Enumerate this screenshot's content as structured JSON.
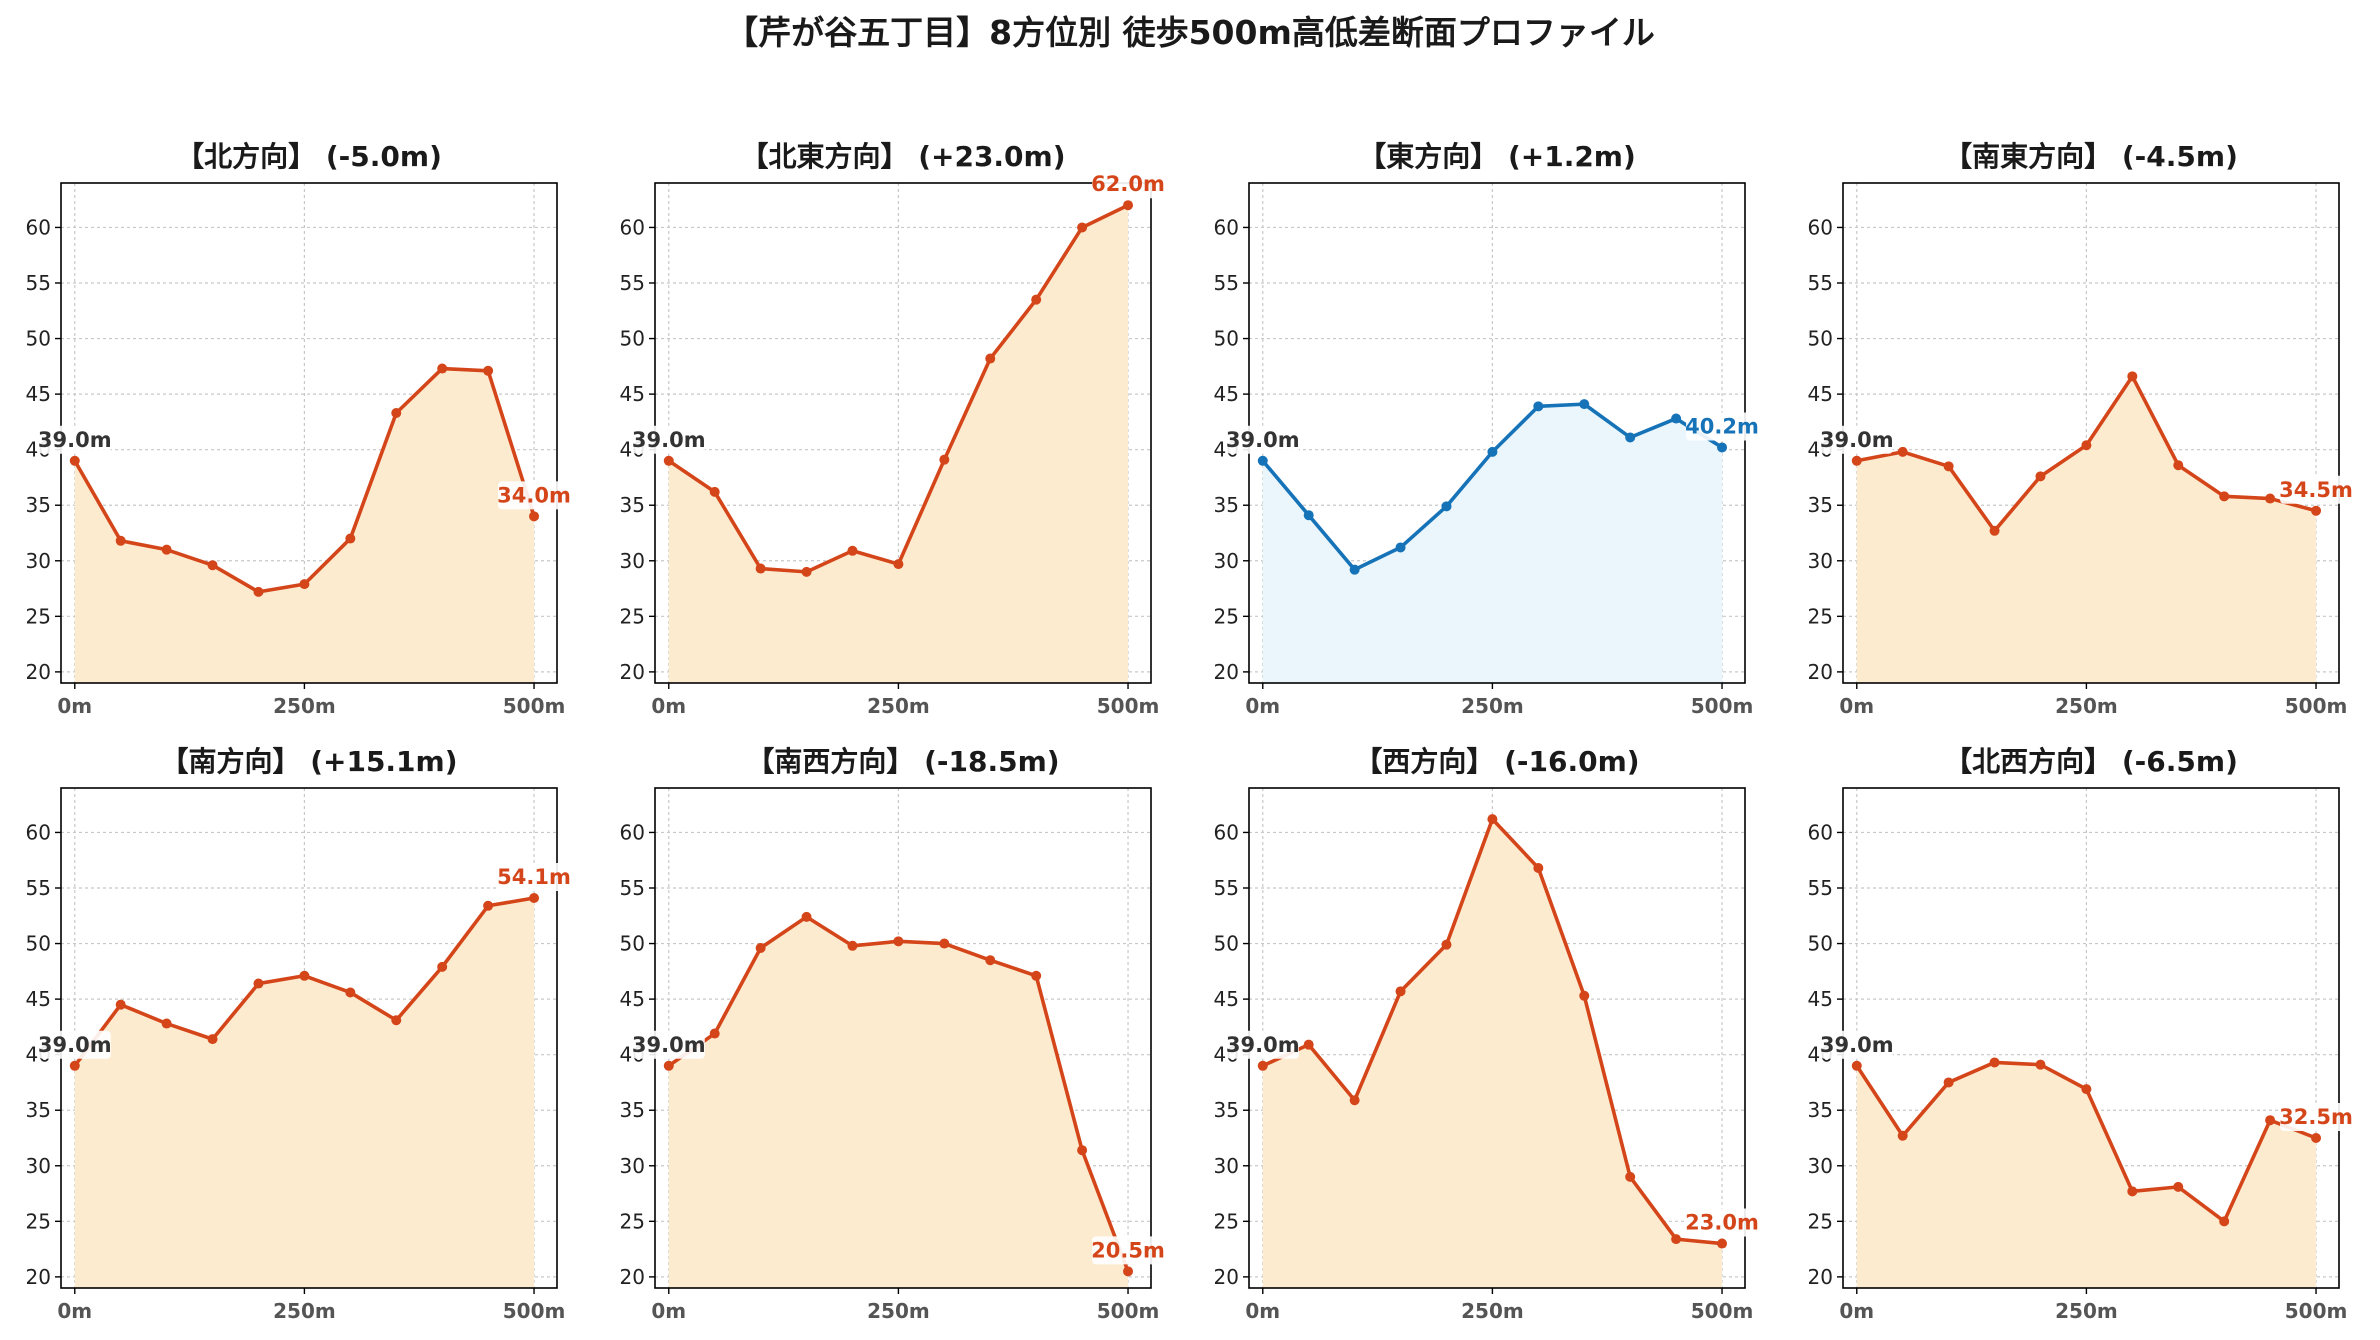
{
  "title": "【芹が谷五丁目】8方位別 徒歩500m高低差断面プロファイル",
  "colors": {
    "up_line": "#D4461A",
    "up_fill": "#FDEBD0",
    "flat_line": "#1673B8",
    "flat_fill": "#EAF6FB",
    "start_label": "#333333"
  },
  "chart_data": [
    {
      "type": "area",
      "title": "【北方向】 (-5.0m)",
      "x": [
        0,
        50,
        100,
        150,
        200,
        250,
        300,
        350,
        400,
        450,
        500
      ],
      "values": [
        39.0,
        31.8,
        31.0,
        29.6,
        27.2,
        27.9,
        32.0,
        43.3,
        47.3,
        47.1,
        34.0
      ],
      "xticks": [
        "0m",
        "250m",
        "500m"
      ],
      "yticks": [
        "20",
        "25",
        "30",
        "35",
        "40",
        "45",
        "50",
        "55",
        "60"
      ],
      "ylim": [
        19,
        64
      ],
      "start_label": "39.0m",
      "end_label": "34.0m",
      "style": "orange",
      "grid": true
    },
    {
      "type": "area",
      "title": "【北東方向】 (+23.0m)",
      "x": [
        0,
        50,
        100,
        150,
        200,
        250,
        300,
        350,
        400,
        450,
        500
      ],
      "values": [
        39.0,
        36.2,
        29.3,
        29.0,
        30.9,
        29.7,
        39.1,
        48.2,
        53.5,
        60.0,
        62.0
      ],
      "xticks": [
        "0m",
        "250m",
        "500m"
      ],
      "yticks": [
        "20",
        "25",
        "30",
        "35",
        "40",
        "45",
        "50",
        "55",
        "60"
      ],
      "ylim": [
        19,
        64
      ],
      "start_label": "39.0m",
      "end_label": "62.0m",
      "style": "orange",
      "grid": true
    },
    {
      "type": "area",
      "title": "【東方向】 (+1.2m)",
      "x": [
        0,
        50,
        100,
        150,
        200,
        250,
        300,
        350,
        400,
        450,
        500
      ],
      "values": [
        39.0,
        34.1,
        29.2,
        31.2,
        34.9,
        39.8,
        43.9,
        44.1,
        41.1,
        42.8,
        40.2
      ],
      "xticks": [
        "0m",
        "250m",
        "500m"
      ],
      "yticks": [
        "20",
        "25",
        "30",
        "35",
        "40",
        "45",
        "50",
        "55",
        "60"
      ],
      "ylim": [
        19,
        64
      ],
      "start_label": "39.0m",
      "end_label": "40.2m",
      "style": "blue",
      "grid": true
    },
    {
      "type": "area",
      "title": "【南東方向】 (-4.5m)",
      "x": [
        0,
        50,
        100,
        150,
        200,
        250,
        300,
        350,
        400,
        450,
        500
      ],
      "values": [
        39.0,
        39.8,
        38.5,
        32.7,
        37.6,
        40.4,
        46.6,
        38.6,
        35.8,
        35.6,
        34.5
      ],
      "xticks": [
        "0m",
        "250m",
        "500m"
      ],
      "yticks": [
        "20",
        "25",
        "30",
        "35",
        "40",
        "45",
        "50",
        "55",
        "60"
      ],
      "ylim": [
        19,
        64
      ],
      "start_label": "39.0m",
      "end_label": "34.5m",
      "style": "orange",
      "grid": true
    },
    {
      "type": "area",
      "title": "【南方向】 (+15.1m)",
      "x": [
        0,
        50,
        100,
        150,
        200,
        250,
        300,
        350,
        400,
        450,
        500
      ],
      "values": [
        39.0,
        44.5,
        42.8,
        41.4,
        46.4,
        47.1,
        45.6,
        43.1,
        47.9,
        53.4,
        54.1
      ],
      "xticks": [
        "0m",
        "250m",
        "500m"
      ],
      "yticks": [
        "20",
        "25",
        "30",
        "35",
        "40",
        "45",
        "50",
        "55",
        "60"
      ],
      "ylim": [
        19,
        64
      ],
      "start_label": "39.0m",
      "end_label": "54.1m",
      "style": "orange",
      "grid": true
    },
    {
      "type": "area",
      "title": "【南西方向】 (-18.5m)",
      "x": [
        0,
        50,
        100,
        150,
        200,
        250,
        300,
        350,
        400,
        450,
        500
      ],
      "values": [
        39.0,
        41.9,
        49.6,
        52.4,
        49.8,
        50.2,
        50.0,
        48.5,
        47.1,
        31.4,
        20.5
      ],
      "xticks": [
        "0m",
        "250m",
        "500m"
      ],
      "yticks": [
        "20",
        "25",
        "30",
        "35",
        "40",
        "45",
        "50",
        "55",
        "60"
      ],
      "ylim": [
        19,
        64
      ],
      "start_label": "39.0m",
      "end_label": "20.5m",
      "style": "orange",
      "grid": true
    },
    {
      "type": "area",
      "title": "【西方向】 (-16.0m)",
      "x": [
        0,
        50,
        100,
        150,
        200,
        250,
        300,
        350,
        400,
        450,
        500
      ],
      "values": [
        39.0,
        40.9,
        35.9,
        45.7,
        49.9,
        61.2,
        56.8,
        45.3,
        29.0,
        23.4,
        23.0
      ],
      "xticks": [
        "0m",
        "250m",
        "500m"
      ],
      "yticks": [
        "20",
        "25",
        "30",
        "35",
        "40",
        "45",
        "50",
        "55",
        "60"
      ],
      "ylim": [
        19,
        64
      ],
      "start_label": "39.0m",
      "end_label": "23.0m",
      "style": "orange",
      "grid": true
    },
    {
      "type": "area",
      "title": "【北西方向】 (-6.5m)",
      "x": [
        0,
        50,
        100,
        150,
        200,
        250,
        300,
        350,
        400,
        450,
        500
      ],
      "values": [
        39.0,
        32.7,
        37.5,
        39.3,
        39.1,
        36.9,
        27.7,
        28.1,
        25.0,
        34.1,
        32.5
      ],
      "xticks": [
        "0m",
        "250m",
        "500m"
      ],
      "yticks": [
        "20",
        "25",
        "30",
        "35",
        "40",
        "45",
        "50",
        "55",
        "60"
      ],
      "ylim": [
        19,
        64
      ],
      "start_label": "39.0m",
      "end_label": "32.5m",
      "style": "orange",
      "grid": true
    }
  ]
}
